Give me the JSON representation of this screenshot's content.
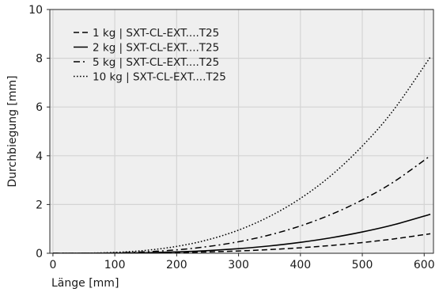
{
  "chart_data": {
    "type": "line",
    "title": "",
    "xlabel": "Länge [mm]",
    "ylabel": "Durchbiegung [mm]",
    "xlim": [
      -5,
      615
    ],
    "ylim": [
      0,
      10
    ],
    "xticks": [
      "0",
      "100",
      "200",
      "300",
      "400",
      "500",
      "600"
    ],
    "yticks": [
      "0",
      "2",
      "4",
      "6",
      "8",
      "10"
    ],
    "grid": true,
    "legend_position": "top-left",
    "x": [
      0,
      50,
      100,
      150,
      200,
      250,
      300,
      350,
      400,
      450,
      500,
      550,
      610
    ],
    "series": [
      {
        "name": "1 kg | SXT-CL-EXT....T25",
        "dash": "dashed",
        "values": [
          0.0,
          0.0004,
          0.0035,
          0.012,
          0.028,
          0.055,
          0.095,
          0.151,
          0.225,
          0.321,
          0.44,
          0.586,
          0.8
        ]
      },
      {
        "name": "2 kg | SXT-CL-EXT....T25",
        "dash": "solid",
        "values": [
          0.0,
          0.0009,
          0.007,
          0.024,
          0.056,
          0.109,
          0.189,
          0.3,
          0.448,
          0.637,
          0.874,
          1.164,
          1.6
        ]
      },
      {
        "name": "5 kg | SXT-CL-EXT....T25",
        "dash": "dashdot",
        "values": [
          0.0,
          0.0022,
          0.0176,
          0.059,
          0.14,
          0.274,
          0.473,
          0.751,
          1.121,
          1.597,
          2.19,
          2.915,
          4.0
        ]
      },
      {
        "name": "10 kg | SXT-CL-EXT....T25",
        "dash": "dotted",
        "values": [
          0.0,
          0.0044,
          0.035,
          0.119,
          0.282,
          0.55,
          0.95,
          1.51,
          2.25,
          3.2,
          4.4,
          5.86,
          8.05
        ]
      }
    ],
    "colors": {
      "background": "#efefef",
      "grid": "#d4d4d4",
      "line": "#000000",
      "text": "#1a1a1a"
    }
  }
}
